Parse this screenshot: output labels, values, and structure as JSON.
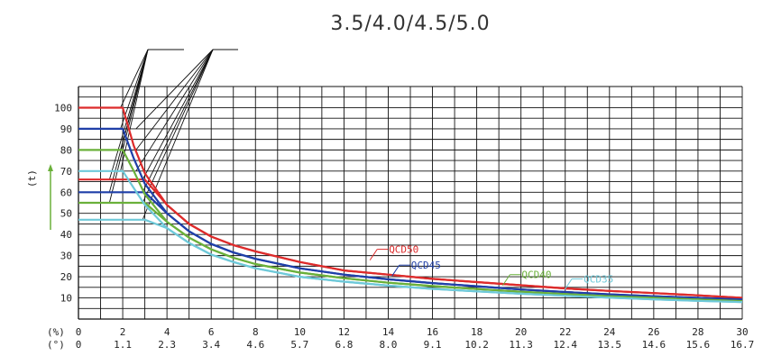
{
  "chart_data": {
    "type": "line",
    "title": "3.5/4.0/4.5/5.0",
    "ylabel": "(t)",
    "x_unit_pct": "(%)",
    "x_unit_deg": "(°)",
    "xlim": [
      0,
      30
    ],
    "ylim": [
      0,
      110
    ],
    "grid": true,
    "x_ticks_pct": [
      "0",
      "2",
      "4",
      "6",
      "8",
      "10",
      "12",
      "14",
      "16",
      "18",
      "20",
      "22",
      "24",
      "26",
      "28",
      "30"
    ],
    "x_ticks_deg": [
      "0",
      "1.1",
      "2.3",
      "3.4",
      "4.6",
      "5.7",
      "6.8",
      "8.0",
      "9.1",
      "10.2",
      "11.3",
      "12.4",
      "13.5",
      "14.6",
      "15.6",
      "16.7"
    ],
    "y_ticks": [
      10,
      20,
      30,
      40,
      50,
      60,
      70,
      80,
      90,
      100
    ],
    "series": [
      {
        "name": "QCD50",
        "color": "#dd2b2b",
        "variants": [
          {
            "x": [
              0,
              2,
              2.5,
              3,
              4,
              5,
              6,
              7,
              8,
              10,
              12,
              14,
              16,
              18,
              20,
              22,
              24,
              26,
              28,
              30
            ],
            "y": [
              100,
              100,
              82,
              69,
              54,
              45,
              39,
              35,
              32,
              27,
              23,
              21,
              19,
              17.5,
              16,
              14.5,
              13.3,
              12.3,
              11.2,
              10
            ]
          },
          {
            "x": [
              0,
              2,
              3,
              4,
              5,
              6,
              7,
              8,
              10,
              12,
              14,
              16,
              18,
              20,
              22,
              24,
              26,
              28,
              30
            ],
            "y": [
              66,
              66,
              66,
              54,
              45,
              39,
              35,
              32,
              27,
              23,
              21,
              19,
              17.5,
              16,
              14.5,
              13.3,
              12.3,
              11.2,
              10
            ]
          }
        ],
        "label_at": [
          13.5,
          33
        ]
      },
      {
        "name": "QCD45",
        "color": "#1f3fa8",
        "variants": [
          {
            "x": [
              0,
              2,
              2.5,
              3,
              4,
              5,
              6,
              7,
              8,
              10,
              12,
              14,
              16,
              18,
              20,
              22,
              24,
              26,
              28,
              30
            ],
            "y": [
              90,
              90,
              76,
              64,
              50,
              41.5,
              35.5,
              31.5,
              28.5,
              24,
              21,
              18.8,
              17,
              15.5,
              14,
              12.8,
              11.7,
              10.8,
              10,
              9.2
            ]
          },
          {
            "x": [
              0,
              2,
              3,
              4,
              5,
              6,
              7,
              8,
              10,
              12,
              14,
              16,
              18,
              20,
              22,
              24,
              26,
              28,
              30
            ],
            "y": [
              60,
              60,
              60,
              50,
              41.5,
              35.5,
              31.5,
              28.5,
              24,
              21,
              18.8,
              17,
              15.5,
              14,
              12.8,
              11.7,
              10.8,
              10,
              9.2
            ]
          }
        ],
        "label_at": [
          14.5,
          25.5
        ]
      },
      {
        "name": "QCD40",
        "color": "#6ab03a",
        "variants": [
          {
            "x": [
              0,
              2,
              2.5,
              3,
              4,
              5,
              6,
              7,
              8,
              10,
              12,
              14,
              16,
              18,
              20,
              22,
              24,
              26,
              28,
              30
            ],
            "y": [
              80,
              80,
              70,
              59,
              46,
              38.5,
              33,
              29,
              26,
              22,
              19.3,
              17.2,
              15.6,
              14.2,
              12.9,
              11.8,
              10.8,
              10,
              9.2,
              8.5
            ]
          },
          {
            "x": [
              0,
              2,
              3,
              4,
              5,
              6,
              7,
              8,
              10,
              12,
              14,
              16,
              18,
              20,
              22,
              24,
              26,
              28,
              30
            ],
            "y": [
              55,
              55,
              55,
              46,
              38.5,
              33,
              29,
              26,
              22,
              19.3,
              17.2,
              15.6,
              14.2,
              12.9,
              11.8,
              10.8,
              10,
              9.2,
              8.5
            ]
          }
        ],
        "label_at": [
          19.5,
          21
        ]
      },
      {
        "name": "QCD35",
        "color": "#6ec9d9",
        "variants": [
          {
            "x": [
              0,
              2,
              2.5,
              3,
              4,
              5,
              6,
              7,
              8,
              10,
              12,
              14,
              16,
              18,
              20,
              22,
              24,
              26,
              28,
              30
            ],
            "y": [
              70,
              70,
              62,
              54,
              43,
              36,
              30.5,
              27,
              24,
              20,
              17.7,
              15.8,
              14.3,
              13.1,
              12,
              11,
              10.1,
              9.3,
              8.6,
              8
            ]
          },
          {
            "x": [
              0,
              2,
              3,
              4,
              5,
              6,
              7,
              8,
              10,
              12,
              14,
              16,
              18,
              20,
              22,
              24,
              26,
              28,
              30
            ],
            "y": [
              47,
              47,
              47,
              43,
              36,
              30.5,
              27,
              24,
              20,
              17.7,
              15.8,
              14.3,
              13.1,
              12,
              11,
              10.1,
              9.3,
              8.6,
              8
            ]
          }
        ],
        "label_at": [
          22.3,
          19
        ]
      }
    ]
  }
}
